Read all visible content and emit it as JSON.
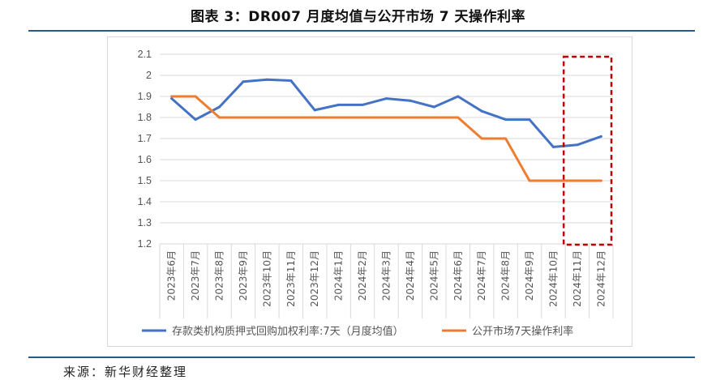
{
  "title": "图表 3：DR007 月度均值与公开市场 7 天操作利率",
  "source": "来源：新华财经整理",
  "chart_data": {
    "type": "line",
    "categories": [
      "2023年6月",
      "2023年7月",
      "2023年8月",
      "2023年9月",
      "2023年10月",
      "2023年11月",
      "2023年12月",
      "2024年1月",
      "2024年2月",
      "2024年3月",
      "2024年4月",
      "2024年5月",
      "2024年6月",
      "2024年7月",
      "2024年8月",
      "2024年9月",
      "2024年10月",
      "2024年11月",
      "2024年12月"
    ],
    "series": [
      {
        "name": "存款类机构质押式回购加权利率:7天（月度均值）",
        "color": "#4472c4",
        "values": [
          1.89,
          1.79,
          1.85,
          1.97,
          1.98,
          1.975,
          1.835,
          1.86,
          1.86,
          1.89,
          1.88,
          1.85,
          1.9,
          1.83,
          1.79,
          1.79,
          1.66,
          1.67,
          1.71
        ]
      },
      {
        "name": "公开市场7天操作利率",
        "color": "#ed7d31",
        "values": [
          1.9,
          1.9,
          1.8,
          1.8,
          1.8,
          1.8,
          1.8,
          1.8,
          1.8,
          1.8,
          1.8,
          1.8,
          1.8,
          1.7,
          1.7,
          1.5,
          1.5,
          1.5,
          1.5
        ]
      }
    ],
    "yticks": [
      "1.2",
      "1.3",
      "1.4",
      "1.5",
      "1.6",
      "1.7",
      "1.8",
      "1.9",
      "2",
      "2.1"
    ],
    "ylim": [
      1.2,
      2.1
    ],
    "grid": true,
    "legend": "bottom",
    "highlight": {
      "from": "2024年11月",
      "to": "2024年12月",
      "color": "#c00000"
    }
  }
}
